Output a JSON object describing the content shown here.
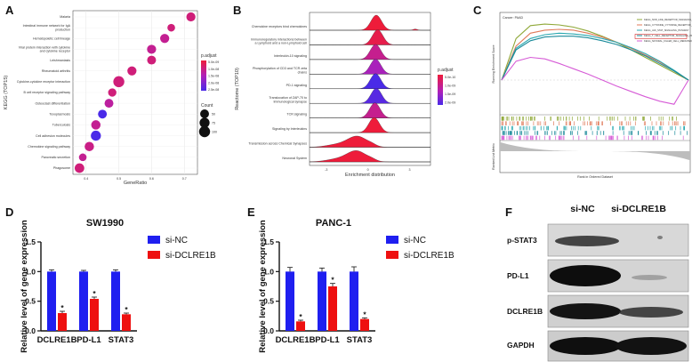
{
  "panels": {
    "a": "A",
    "b": "B",
    "c": "C",
    "d": "D",
    "e": "E",
    "f": "F"
  },
  "chart_data": [
    {
      "type": "scatter",
      "panel": "A",
      "categories": [
        "Malaria",
        "Intestinal immune network for IgA production",
        "Hematopoietic cell lineage",
        "Viral protein interaction with cytokine and cytokine receptor",
        "Leishmaniasis",
        "Rheumatoid arthritis",
        "Cytokine-cytokine receptor interaction",
        "B cell receptor signaling pathway",
        "Osteoclast differentiation",
        "Toxoplasmosis",
        "Tuberculosis",
        "Cell adhesion molecules",
        "Chemokine signaling pathway",
        "Pancreatic secretion",
        "Phagosome"
      ],
      "x": [
        0.72,
        0.66,
        0.64,
        0.6,
        0.6,
        0.54,
        0.5,
        0.48,
        0.47,
        0.45,
        0.43,
        0.43,
        0.41,
        0.39,
        0.38
      ],
      "padjust": [
        1e-08,
        1e-08,
        1.2e-08,
        1.2e-08,
        1e-08,
        1e-08,
        1e-08,
        1e-08,
        1.3e-08,
        2.5e-08,
        1.2e-08,
        2.8e-08,
        1.1e-08,
        1.2e-08,
        1e-08
      ],
      "count": [
        55,
        30,
        55,
        55,
        50,
        55,
        100,
        40,
        50,
        50,
        60,
        75,
        60,
        30,
        65
      ],
      "xlabel": "GeneRatio",
      "ylabel": "KEGG (TOP15)",
      "xticks": [
        0.4,
        0.5,
        0.6,
        0.7
      ],
      "legend_color_title": "p.adjust",
      "legend_color_labels": [
        "5.0e-09",
        "1.0e-08",
        "1.5e-08",
        "2.0e-08",
        "2.5e-08"
      ],
      "legend_size_title": "Count",
      "legend_size_labels": [
        "50",
        "75",
        "100"
      ]
    },
    {
      "type": "area",
      "panel": "B",
      "categories": [
        "Chemokine receptors bind chemokines",
        "Immunoregulatory interactions between a Lymphoid and a non-Lymphoid cell",
        "Interleukin-10 signaling",
        "Phosphorylation of CD3 and TCR zeta chains",
        "PD-1 signaling",
        "Translocation of ZAP-70 to Immunological synapse",
        "TCR signaling",
        "Signaling by Interleukins",
        "Transmission across Chemical Synapses",
        "Neuronal System"
      ],
      "peak_x": [
        0.6,
        0.7,
        0.55,
        0.55,
        0.55,
        0.6,
        0.5,
        0.45,
        -0.75,
        -0.8
      ],
      "padjust": [
        5e-10,
        6e-10,
        1e-09,
        1.3e-09,
        2e-09,
        1.9e-09,
        1e-09,
        5e-10,
        5e-10,
        5e-10
      ],
      "xlabel": "Enrichment distribution",
      "ylabel": "Reactome (TOP10)",
      "xticks": [
        -3,
        0,
        3
      ],
      "legend_title": "p.adjust",
      "legend_labels": [
        "5.0e-10",
        "1.0e-09",
        "1.5e-09",
        "2.0e-09"
      ]
    },
    {
      "type": "line",
      "panel": "C",
      "title": "Cancer: PAAD",
      "ylabel": "Running Enrichment Score",
      "ylabel2": "Ranked List Metric",
      "xlabel": "Rank in Ordered Dataset",
      "series": [
        {
          "name": "KEGG_NOD_LIKE_RECEPTOR_SIGNALING_PATHWAY",
          "color": "#8fa838",
          "values": [
            0,
            0.55,
            0.72,
            0.74,
            0.73,
            0.7,
            0.65,
            0.58,
            0.5,
            0.4,
            0.3,
            0.2,
            0.1,
            0
          ]
        },
        {
          "name": "KEGG_CYTOKINE_CYTOKINE_RECEPTOR_INTERACTION",
          "color": "#e07b5a",
          "values": [
            0,
            0.45,
            0.62,
            0.66,
            0.67,
            0.66,
            0.62,
            0.57,
            0.5,
            0.42,
            0.33,
            0.24,
            0.12,
            0
          ]
        },
        {
          "name": "KEGG_JAK_STAT_SIGNALING_PATHWAY",
          "color": "#2aa8b0",
          "values": [
            0,
            0.42,
            0.55,
            0.6,
            0.62,
            0.61,
            0.59,
            0.55,
            0.5,
            0.43,
            0.35,
            0.25,
            0.13,
            0
          ]
        },
        {
          "name": "KEGG_T_CELL_RECEPTOR_SIGNALING_PATHWAY",
          "color": "#1a8a9a",
          "values": [
            0,
            0.4,
            0.52,
            0.57,
            0.58,
            0.58,
            0.56,
            0.52,
            0.47,
            0.4,
            0.32,
            0.22,
            0.12,
            0
          ]
        },
        {
          "name": "KEGG_NATURAL_KILLER_CELL_MEDIATED_CYTOTOXICITY",
          "color": "#d65bd6",
          "values": [
            0,
            0.25,
            0.3,
            0.28,
            0.22,
            0.15,
            0.08,
            0.0,
            -0.08,
            -0.15,
            -0.22,
            -0.28,
            -0.32,
            0
          ]
        }
      ]
    },
    {
      "type": "bar",
      "panel": "D",
      "title": "SW1990",
      "ylabel": "Relative level of gene expression",
      "categories": [
        "DCLRE1B",
        "PD-L1",
        "STAT3"
      ],
      "series": [
        {
          "name": "si-NC",
          "color": "#1f1ff0",
          "values": [
            1.0,
            1.0,
            1.0
          ],
          "errors": [
            0.03,
            0.02,
            0.03
          ]
        },
        {
          "name": "si-DCLRE1B",
          "color": "#ee1010",
          "values": [
            0.3,
            0.54,
            0.28
          ],
          "errors": [
            0.03,
            0.03,
            0.02
          ]
        }
      ],
      "ylim": [
        0,
        1.5
      ],
      "yticks": [
        "0.0",
        "0.5",
        "1.0",
        "1.5"
      ],
      "annotations": [
        "*",
        "*",
        "*"
      ]
    },
    {
      "type": "bar",
      "panel": "E",
      "title": "PANC-1",
      "ylabel": "Relative level of gene expression",
      "categories": [
        "DCLRE1B",
        "PD-L1",
        "STAT3"
      ],
      "series": [
        {
          "name": "si-NC",
          "color": "#1f1ff0",
          "values": [
            1.0,
            1.0,
            1.0
          ],
          "errors": [
            0.07,
            0.06,
            0.08
          ]
        },
        {
          "name": "si-DCLRE1B",
          "color": "#ee1010",
          "values": [
            0.16,
            0.75,
            0.2
          ],
          "errors": [
            0.02,
            0.05,
            0.02
          ]
        }
      ],
      "ylim": [
        0,
        1.5
      ],
      "yticks": [
        "0.0",
        "0.5",
        "1.0",
        "1.5"
      ],
      "annotations": [
        "*",
        "*",
        "*"
      ]
    }
  ],
  "western_blot": {
    "columns": [
      "si-NC",
      "si-DCLRE1B"
    ],
    "rows": [
      "p-STAT3",
      "PD-L1",
      "DCLRE1B",
      "GAPDH"
    ]
  }
}
